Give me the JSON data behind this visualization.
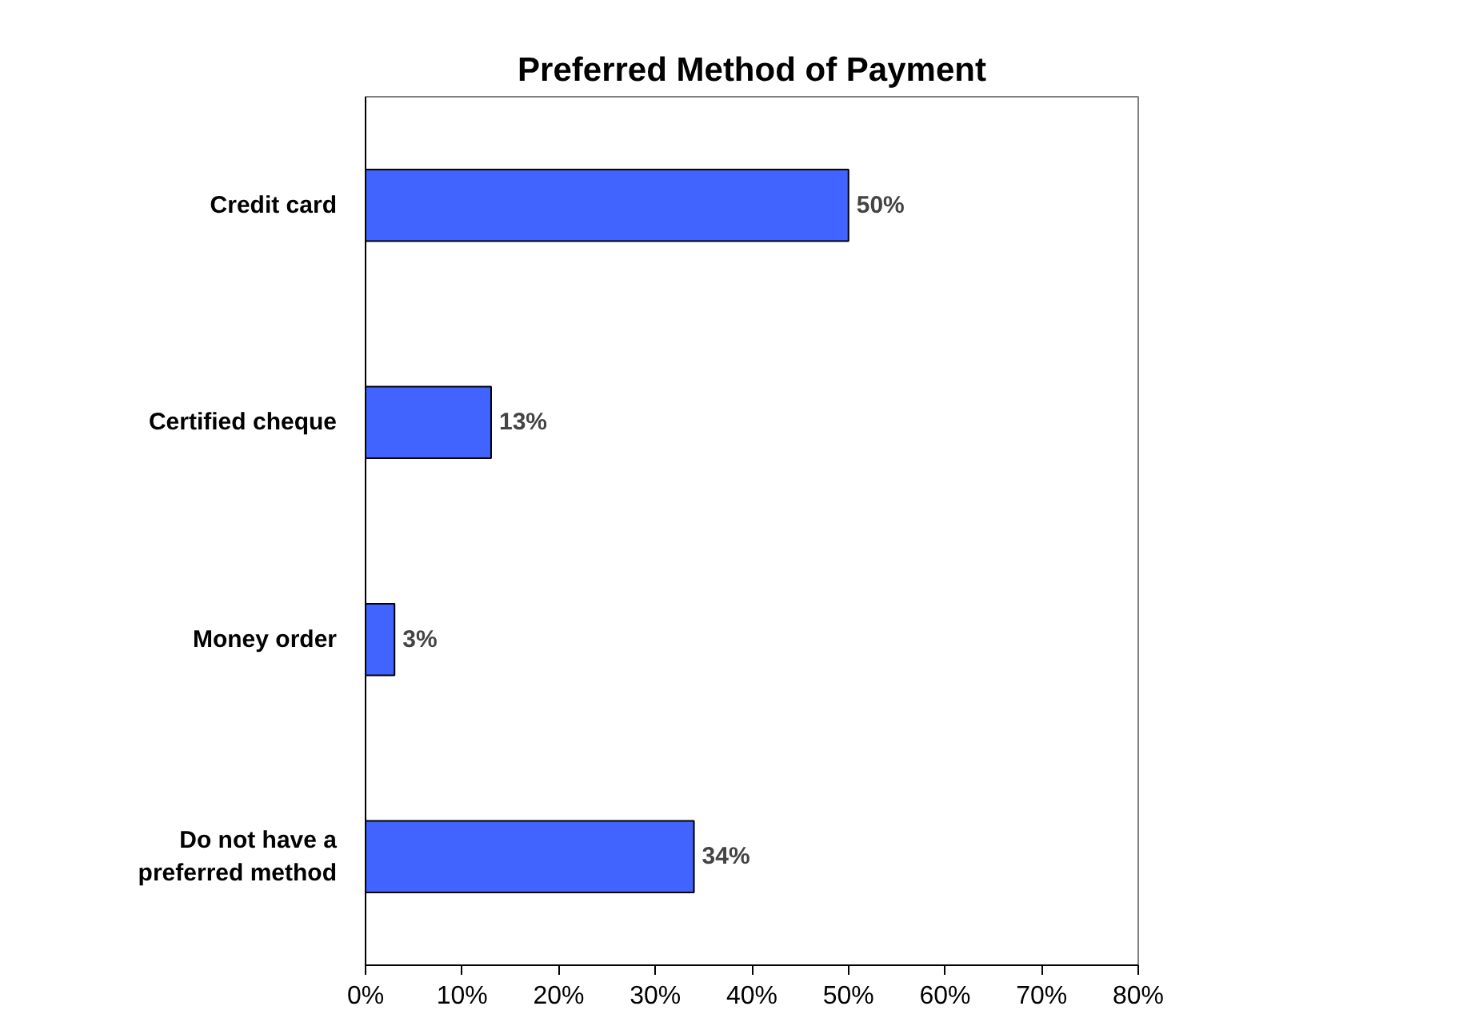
{
  "chart_data": {
    "type": "bar",
    "orientation": "horizontal",
    "title": "Preferred Method of Payment",
    "categories": [
      "Credit card",
      "Certified cheque",
      "Money order",
      "Do not have a preferred method"
    ],
    "values": [
      50,
      13,
      3,
      34
    ],
    "value_labels": [
      "50%",
      "13%",
      "3%",
      "34%"
    ],
    "color": "#4163ff",
    "xlim": [
      0,
      80
    ],
    "xticks": [
      {
        "value": 0,
        "label": "0%"
      },
      {
        "value": 10,
        "label": "10%"
      },
      {
        "value": 20,
        "label": "20%"
      },
      {
        "value": 30,
        "label": "30%"
      },
      {
        "value": 40,
        "label": "40%"
      },
      {
        "value": 50,
        "label": "50%"
      },
      {
        "value": 60,
        "label": "60%"
      },
      {
        "value": 70,
        "label": "70%"
      },
      {
        "value": 80,
        "label": "80%"
      }
    ],
    "grid": false
  }
}
